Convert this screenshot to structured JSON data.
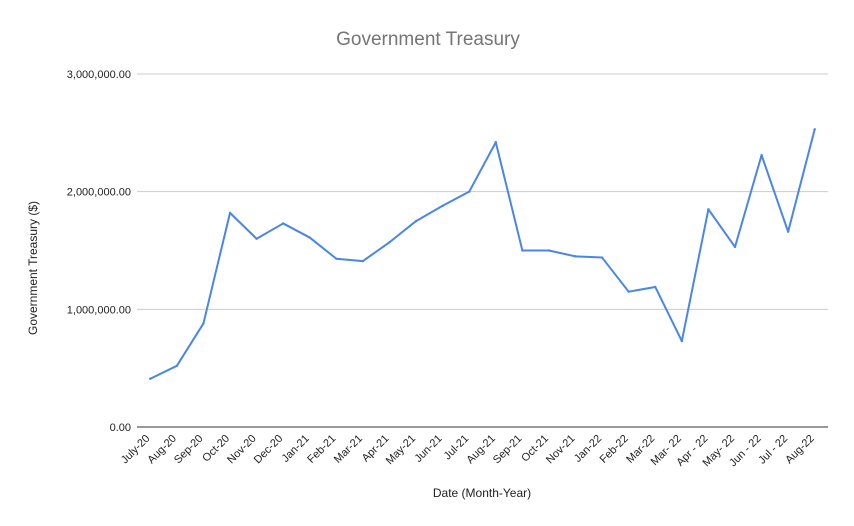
{
  "chart_data": {
    "type": "line",
    "title": "Government Treasury",
    "xlabel": "Date (Month-Year)",
    "ylabel": "Government Treasury ($)",
    "ylim": [
      0,
      3000000
    ],
    "yticks": [
      0,
      1000000,
      2000000,
      3000000
    ],
    "ytick_labels": [
      "0.00",
      "1,000,000.00",
      "2,000,000.00",
      "3,000,000.00"
    ],
    "grid": true,
    "legend": "none",
    "color": "#4a86e8",
    "categories": [
      "July-20",
      "Aug-20",
      "Sep-20",
      "Oct-20",
      "Nov-20",
      "Dec-20",
      "Jan-21",
      "Feb-21",
      "Mar-21",
      "Apr-21",
      "May-21",
      "Jun-21",
      "Jul-21",
      "Aug-21",
      "Sep-21",
      "Oct-21",
      "Nov-21",
      "Jan-22",
      "Feb-22",
      "Mar-22",
      "Mar- 22",
      "Apr - 22",
      "May- 22",
      "Jun - 22",
      "Jul - 22",
      "Aug-22"
    ],
    "series": [
      {
        "values": [
          410000,
          520000,
          880000,
          1820000,
          1600000,
          1730000,
          1610000,
          1430000,
          1410000,
          1570000,
          1750000,
          1880000,
          2000000,
          2420000,
          1500000,
          1500000,
          1450000,
          1440000,
          1150000,
          1190000,
          730000,
          1850000,
          1530000,
          2310000,
          1660000,
          2530000
        ]
      }
    ]
  }
}
